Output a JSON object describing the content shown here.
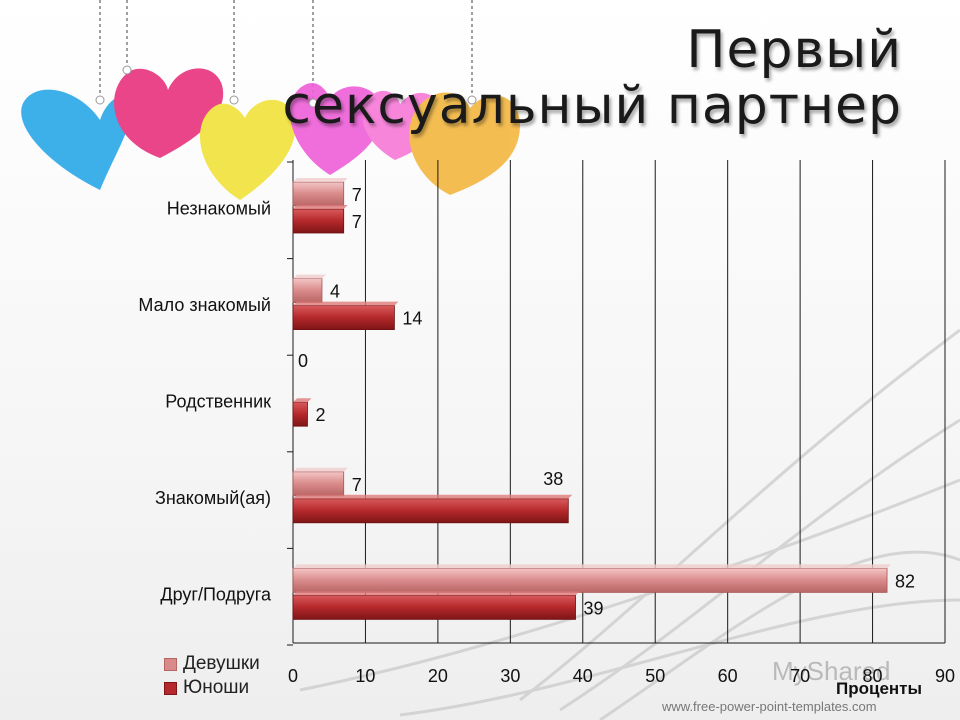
{
  "title": {
    "line1": "Первый",
    "line2": "сексуальный партнер"
  },
  "footer_text": "www.free-power-point-templates.com",
  "watermark_text": "MyShared",
  "colors": {
    "girls": "#d98a8a",
    "boys": "#b5282b",
    "grid": "#1a1a1a"
  },
  "chart_data": {
    "type": "bar",
    "orientation": "horizontal",
    "categories": [
      "Незнакомый",
      "Мало знакомый",
      "Родственник",
      "Знакомый(ая)",
      "Друг/Подруга"
    ],
    "series": [
      {
        "name": "Девушки",
        "values": [
          7,
          4,
          0,
          7,
          82
        ]
      },
      {
        "name": "Юноши",
        "values": [
          7,
          14,
          2,
          38,
          39
        ]
      }
    ],
    "xlabel": "Проценты",
    "ylabel": "",
    "xlim": [
      0,
      90
    ],
    "xticks": [
      "0",
      "10",
      "20",
      "30",
      "40",
      "50",
      "60",
      "70",
      "80",
      "90"
    ],
    "grid": true,
    "legend_position": "bottom-left"
  }
}
